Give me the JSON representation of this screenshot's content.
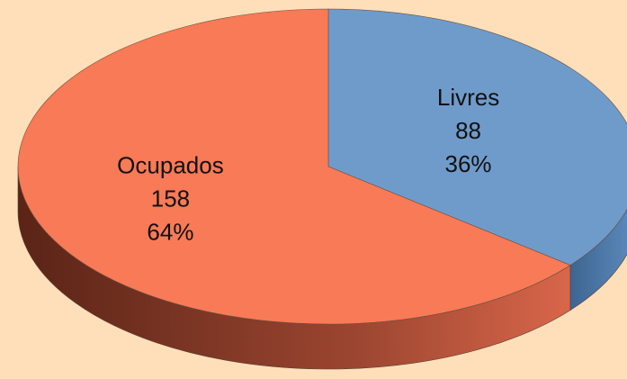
{
  "chart_data": {
    "type": "pie3d",
    "categories": [
      "Livres",
      "Ocupados"
    ],
    "values": [
      88,
      158
    ],
    "percent_labels": [
      "36%",
      "64%"
    ],
    "colors": [
      "#6f9bcb",
      "#f87a56"
    ]
  }
}
